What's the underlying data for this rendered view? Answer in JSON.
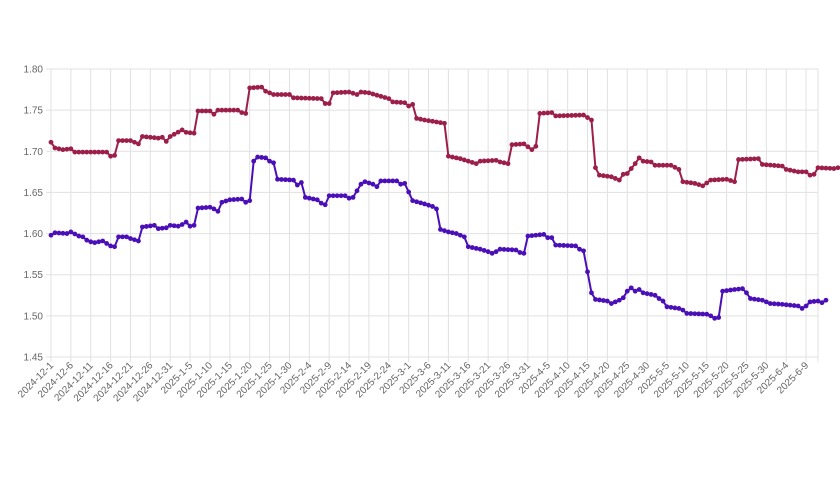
{
  "chart_data": {
    "type": "line",
    "title": "",
    "xlabel": "",
    "ylabel": "",
    "ylim": [
      1.45,
      1.8
    ],
    "yticks": [
      "1.45",
      "1.50",
      "1.55",
      "1.60",
      "1.65",
      "1.70",
      "1.75",
      "1.80"
    ],
    "grid": true,
    "legend": "none",
    "xtick_labels": [
      "2024-12-1",
      "2024-12-6",
      "2024-12-11",
      "2024-12-16",
      "2024-12-21",
      "2024-12-26",
      "2024-12-31",
      "2025-1-5",
      "2025-1-10",
      "2025-1-15",
      "2025-1-20",
      "2025-1-25",
      "2025-1-30",
      "2025-2-4",
      "2025-2-9",
      "2025-2-14",
      "2025-2-19",
      "2025-2-24",
      "2025-3-1",
      "2025-3-6",
      "2025-3-11",
      "2025-3-16",
      "2025-3-21",
      "2025-3-26",
      "2025-3-31",
      "2025-4-5",
      "2025-4-10",
      "2025-4-15",
      "2025-4-20",
      "2025-4-25",
      "2025-4-30",
      "2025-5-5",
      "2025-5-10",
      "2025-5-15",
      "2025-5-20",
      "2025-5-25",
      "2025-5-30",
      "2025-6-4",
      "2025-6-9"
    ],
    "x_start": "2024-12-1",
    "x_end": "2025-6-12",
    "series": [
      {
        "color": "#9c1f4a",
        "knots": [
          [
            "2024-12-1",
            1.711
          ],
          [
            "2024-12-2",
            1.704
          ],
          [
            "2024-12-4",
            1.702
          ],
          [
            "2024-12-6",
            1.703
          ],
          [
            "2024-12-7",
            1.699
          ],
          [
            "2024-12-15",
            1.699
          ],
          [
            "2024-12-16",
            1.694
          ],
          [
            "2024-12-17",
            1.695
          ],
          [
            "2024-12-18",
            1.713
          ],
          [
            "2024-12-21",
            1.713
          ],
          [
            "2024-12-23",
            1.709
          ],
          [
            "2024-12-24",
            1.718
          ],
          [
            "2024-12-28",
            1.716
          ],
          [
            "2024-12-29",
            1.717
          ],
          [
            "2024-12-30",
            1.712
          ],
          [
            "2024-12-31",
            1.718
          ],
          [
            "2025-1-3",
            1.726
          ],
          [
            "2025-1-4",
            1.723
          ],
          [
            "2025-1-6",
            1.722
          ],
          [
            "2025-1-7",
            1.749
          ],
          [
            "2025-1-10",
            1.749
          ],
          [
            "2025-1-11",
            1.745
          ],
          [
            "2025-1-12",
            1.75
          ],
          [
            "2025-1-17",
            1.75
          ],
          [
            "2025-1-18",
            1.747
          ],
          [
            "2025-1-19",
            1.746
          ],
          [
            "2025-1-20",
            1.777
          ],
          [
            "2025-1-23",
            1.778
          ],
          [
            "2025-1-24",
            1.773
          ],
          [
            "2025-1-26",
            1.769
          ],
          [
            "2025-1-30",
            1.769
          ],
          [
            "2025-1-31",
            1.765
          ],
          [
            "2025-2-7",
            1.764
          ],
          [
            "2025-2-8",
            1.758
          ],
          [
            "2025-2-9",
            1.758
          ],
          [
            "2025-2-10",
            1.771
          ],
          [
            "2025-2-14",
            1.772
          ],
          [
            "2025-2-16",
            1.769
          ],
          [
            "2025-2-17",
            1.772
          ],
          [
            "2025-2-19",
            1.771
          ],
          [
            "2025-2-24",
            1.764
          ],
          [
            "2025-2-25",
            1.76
          ],
          [
            "2025-2-28",
            1.759
          ],
          [
            "2025-3-1",
            1.755
          ],
          [
            "2025-3-2",
            1.757
          ],
          [
            "2025-3-3",
            1.74
          ],
          [
            "2025-3-5",
            1.738
          ],
          [
            "2025-3-10",
            1.734
          ],
          [
            "2025-3-11",
            1.694
          ],
          [
            "2025-3-14",
            1.691
          ],
          [
            "2025-3-18",
            1.685
          ],
          [
            "2025-3-19",
            1.688
          ],
          [
            "2025-3-23",
            1.689
          ],
          [
            "2025-3-24",
            1.687
          ],
          [
            "2025-3-26",
            1.685
          ],
          [
            "2025-3-27",
            1.708
          ],
          [
            "2025-3-30",
            1.709
          ],
          [
            "2025-4-1",
            1.702
          ],
          [
            "2025-4-2",
            1.706
          ],
          [
            "2025-4-3",
            1.746
          ],
          [
            "2025-4-6",
            1.747
          ],
          [
            "2025-4-7",
            1.743
          ],
          [
            "2025-4-14",
            1.744
          ],
          [
            "2025-4-16",
            1.738
          ],
          [
            "2025-4-17",
            1.68
          ],
          [
            "2025-4-18",
            1.671
          ],
          [
            "2025-4-21",
            1.669
          ],
          [
            "2025-4-23",
            1.665
          ],
          [
            "2025-4-24",
            1.672
          ],
          [
            "2025-4-25",
            1.673
          ],
          [
            "2025-4-27",
            1.685
          ],
          [
            "2025-4-28",
            1.692
          ],
          [
            "2025-4-29",
            1.688
          ],
          [
            "2025-5-1",
            1.687
          ],
          [
            "2025-5-2",
            1.683
          ],
          [
            "2025-5-6",
            1.683
          ],
          [
            "2025-5-8",
            1.678
          ],
          [
            "2025-5-9",
            1.663
          ],
          [
            "2025-5-12",
            1.661
          ],
          [
            "2025-5-14",
            1.658
          ],
          [
            "2025-5-16",
            1.665
          ],
          [
            "2025-5-20",
            1.666
          ],
          [
            "2025-5-22",
            1.663
          ],
          [
            "2025-5-23",
            1.69
          ],
          [
            "2025-5-28",
            1.691
          ],
          [
            "2025-5-29",
            1.684
          ],
          [
            "2025-6-3",
            1.682
          ],
          [
            "2025-6-4",
            1.678
          ],
          [
            "2025-6-7",
            1.675
          ],
          [
            "2025-6-9",
            1.675
          ],
          [
            "2025-6-10",
            1.671
          ],
          [
            "2025-6-11",
            1.672
          ],
          [
            "2025-6-12",
            1.68
          ],
          [
            "2025-6-16",
            1.679
          ],
          [
            "2025-6-17",
            1.68
          ]
        ]
      },
      {
        "color": "#4b0fb8",
        "knots": [
          [
            "2024-12-1",
            1.598
          ],
          [
            "2024-12-2",
            1.601
          ],
          [
            "2024-12-5",
            1.6
          ],
          [
            "2024-12-6",
            1.602
          ],
          [
            "2024-12-8",
            1.597
          ],
          [
            "2024-12-9",
            1.596
          ],
          [
            "2024-12-10",
            1.592
          ],
          [
            "2024-12-11",
            1.59
          ],
          [
            "2024-12-12",
            1.589
          ],
          [
            "2024-12-14",
            1.591
          ],
          [
            "2024-12-15",
            1.588
          ],
          [
            "2024-12-16",
            1.585
          ],
          [
            "2024-12-17",
            1.584
          ],
          [
            "2024-12-18",
            1.596
          ],
          [
            "2024-12-20",
            1.596
          ],
          [
            "2024-12-21",
            1.594
          ],
          [
            "2024-12-23",
            1.591
          ],
          [
            "2024-12-24",
            1.608
          ],
          [
            "2024-12-27",
            1.61
          ],
          [
            "2024-12-28",
            1.606
          ],
          [
            "2024-12-30",
            1.607
          ],
          [
            "2024-12-31",
            1.61
          ],
          [
            "2025-1-2",
            1.609
          ],
          [
            "2025-1-3",
            1.611
          ],
          [
            "2025-1-4",
            1.614
          ],
          [
            "2025-1-5",
            1.609
          ],
          [
            "2025-1-6",
            1.61
          ],
          [
            "2025-1-7",
            1.631
          ],
          [
            "2025-1-10",
            1.632
          ],
          [
            "2025-1-11",
            1.63
          ],
          [
            "2025-1-12",
            1.627
          ],
          [
            "2025-1-13",
            1.638
          ],
          [
            "2025-1-15",
            1.641
          ],
          [
            "2025-1-18",
            1.642
          ],
          [
            "2025-1-19",
            1.638
          ],
          [
            "2025-1-20",
            1.64
          ],
          [
            "2025-1-21",
            1.688
          ],
          [
            "2025-1-22",
            1.693
          ],
          [
            "2025-1-24",
            1.692
          ],
          [
            "2025-1-25",
            1.688
          ],
          [
            "2025-1-26",
            1.686
          ],
          [
            "2025-1-27",
            1.666
          ],
          [
            "2025-1-31",
            1.665
          ],
          [
            "2025-2-1",
            1.659
          ],
          [
            "2025-2-2",
            1.662
          ],
          [
            "2025-2-3",
            1.644
          ],
          [
            "2025-2-6",
            1.641
          ],
          [
            "2025-2-7",
            1.637
          ],
          [
            "2025-2-8",
            1.635
          ],
          [
            "2025-2-9",
            1.646
          ],
          [
            "2025-2-13",
            1.646
          ],
          [
            "2025-2-14",
            1.643
          ],
          [
            "2025-2-15",
            1.644
          ],
          [
            "2025-2-17",
            1.66
          ],
          [
            "2025-2-18",
            1.663
          ],
          [
            "2025-2-20",
            1.66
          ],
          [
            "2025-2-21",
            1.657
          ],
          [
            "2025-2-22",
            1.664
          ],
          [
            "2025-2-26",
            1.664
          ],
          [
            "2025-2-27",
            1.66
          ],
          [
            "2025-2-28",
            1.661
          ],
          [
            "2025-3-2",
            1.64
          ],
          [
            "2025-3-5",
            1.636
          ],
          [
            "2025-3-7",
            1.633
          ],
          [
            "2025-3-8",
            1.63
          ],
          [
            "2025-3-9",
            1.605
          ],
          [
            "2025-3-11",
            1.602
          ],
          [
            "2025-3-13",
            1.6
          ],
          [
            "2025-3-15",
            1.596
          ],
          [
            "2025-3-16",
            1.584
          ],
          [
            "2025-3-19",
            1.581
          ],
          [
            "2025-3-21",
            1.578
          ],
          [
            "2025-3-22",
            1.576
          ],
          [
            "2025-3-23",
            1.578
          ],
          [
            "2025-3-24",
            1.581
          ],
          [
            "2025-3-28",
            1.58
          ],
          [
            "2025-3-29",
            1.577
          ],
          [
            "2025-3-30",
            1.576
          ],
          [
            "2025-3-31",
            1.597
          ],
          [
            "2025-4-4",
            1.599
          ],
          [
            "2025-4-5",
            1.595
          ],
          [
            "2025-4-6",
            1.595
          ],
          [
            "2025-4-7",
            1.586
          ],
          [
            "2025-4-12",
            1.585
          ],
          [
            "2025-4-13",
            1.581
          ],
          [
            "2025-4-14",
            1.579
          ],
          [
            "2025-4-16",
            1.528
          ],
          [
            "2025-4-17",
            1.52
          ],
          [
            "2025-4-20",
            1.518
          ],
          [
            "2025-4-21",
            1.515
          ],
          [
            "2025-4-22",
            1.517
          ],
          [
            "2025-4-23",
            1.519
          ],
          [
            "2025-4-24",
            1.522
          ],
          [
            "2025-4-25",
            1.53
          ],
          [
            "2025-4-26",
            1.534
          ],
          [
            "2025-4-27",
            1.53
          ],
          [
            "2025-4-28",
            1.532
          ],
          [
            "2025-4-29",
            1.528
          ],
          [
            "2025-5-2",
            1.525
          ],
          [
            "2025-5-3",
            1.521
          ],
          [
            "2025-5-4",
            1.518
          ],
          [
            "2025-5-5",
            1.511
          ],
          [
            "2025-5-8",
            1.509
          ],
          [
            "2025-5-9",
            1.507
          ],
          [
            "2025-5-10",
            1.503
          ],
          [
            "2025-5-15",
            1.502
          ],
          [
            "2025-5-16",
            1.5
          ],
          [
            "2025-5-17",
            1.497
          ],
          [
            "2025-5-18",
            1.498
          ],
          [
            "2025-5-19",
            1.53
          ],
          [
            "2025-5-22",
            1.532
          ],
          [
            "2025-5-24",
            1.533
          ],
          [
            "2025-5-25",
            1.528
          ],
          [
            "2025-5-26",
            1.521
          ],
          [
            "2025-5-29",
            1.519
          ],
          [
            "2025-5-30",
            1.517
          ],
          [
            "2025-5-31",
            1.515
          ],
          [
            "2025-6-3",
            1.514
          ],
          [
            "2025-6-5",
            1.513
          ],
          [
            "2025-6-7",
            1.512
          ],
          [
            "2025-6-8",
            1.509
          ],
          [
            "2025-6-9",
            1.512
          ],
          [
            "2025-6-10",
            1.517
          ],
          [
            "2025-6-12",
            1.518
          ],
          [
            "2025-6-13",
            1.516
          ],
          [
            "2025-6-14",
            1.519
          ]
        ]
      }
    ]
  }
}
